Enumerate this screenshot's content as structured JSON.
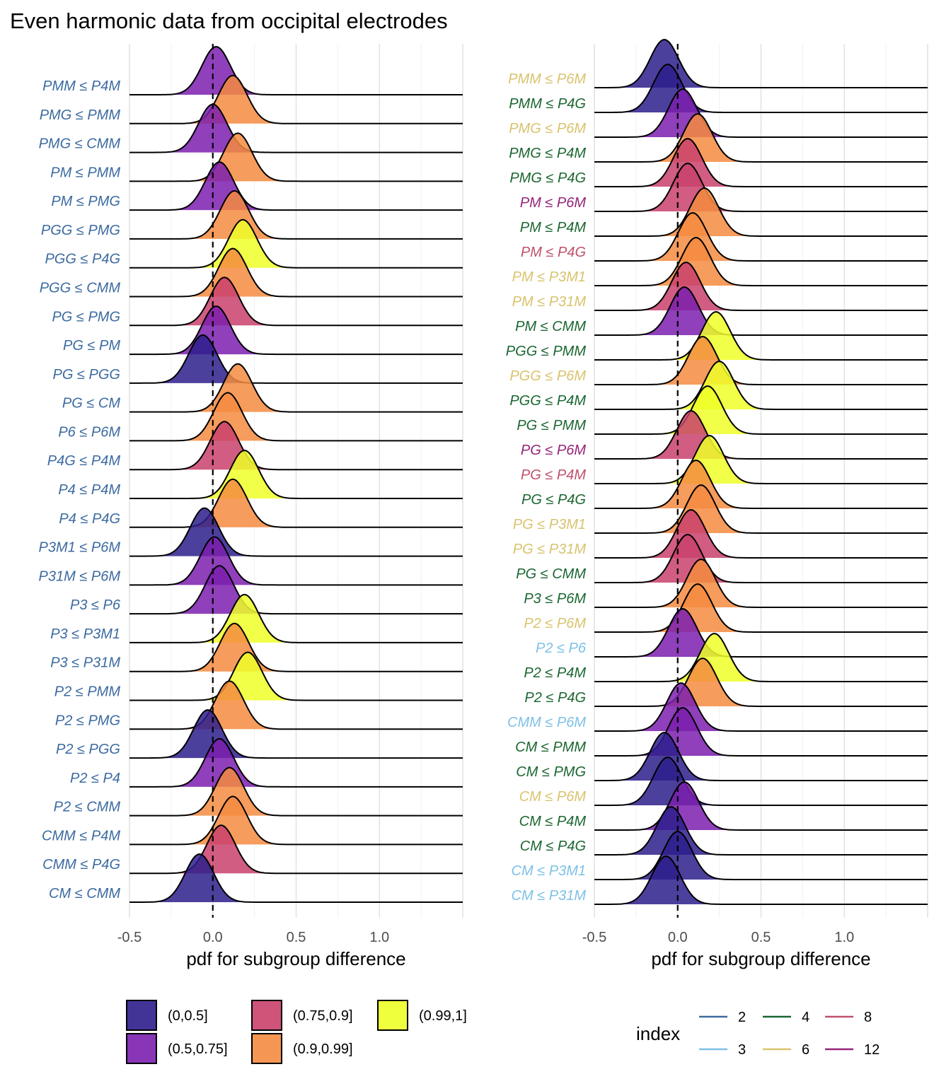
{
  "title": "Even harmonic data from occipital electrodes",
  "chart_data": [
    {
      "type": "ridgeline",
      "xlabel": "pdf for subgroup difference",
      "xlim": [
        -0.5,
        1.5
      ],
      "xticks": [
        -0.5,
        0.0,
        0.5,
        1.0
      ],
      "xtick_labels": [
        "-0.5",
        "0.0",
        "0.5",
        "1.0"
      ],
      "reference_line_x": 0,
      "rows": [
        {
          "label": "PMM ≤ P4M",
          "index": 2,
          "peak": 0.02,
          "prob_bin": "(0.5,0.75]"
        },
        {
          "label": "PMG ≤ PMM",
          "index": 2,
          "peak": 0.12,
          "prob_bin": "(0.9,0.99]"
        },
        {
          "label": "PMG ≤ CMM",
          "index": 2,
          "peak": 0.0,
          "prob_bin": "(0.5,0.75]"
        },
        {
          "label": "PM ≤ PMM",
          "index": 2,
          "peak": 0.15,
          "prob_bin": "(0.9,0.99]"
        },
        {
          "label": "PM ≤ PMG",
          "index": 2,
          "peak": 0.04,
          "prob_bin": "(0.5,0.75]"
        },
        {
          "label": "PGG ≤ PMG",
          "index": 2,
          "peak": 0.13,
          "prob_bin": "(0.9,0.99]"
        },
        {
          "label": "PGG ≤ P4G",
          "index": 2,
          "peak": 0.18,
          "prob_bin": "(0.99,1]"
        },
        {
          "label": "PGG ≤ CMM",
          "index": 2,
          "peak": 0.12,
          "prob_bin": "(0.9,0.99]"
        },
        {
          "label": "PG ≤ PMG",
          "index": 2,
          "peak": 0.07,
          "prob_bin": "(0.75,0.9]"
        },
        {
          "label": "PG ≤ PM",
          "index": 2,
          "peak": 0.02,
          "prob_bin": "(0.5,0.75]"
        },
        {
          "label": "PG ≤ PGG",
          "index": 2,
          "peak": -0.06,
          "prob_bin": "(0,0.5]"
        },
        {
          "label": "PG ≤ CM",
          "index": 2,
          "peak": 0.15,
          "prob_bin": "(0.9,0.99]"
        },
        {
          "label": "P6 ≤ P6M",
          "index": 2,
          "peak": 0.09,
          "prob_bin": "(0.9,0.99]"
        },
        {
          "label": "P4G ≤ P4M",
          "index": 2,
          "peak": 0.07,
          "prob_bin": "(0.75,0.9]"
        },
        {
          "label": "P4 ≤ P4M",
          "index": 2,
          "peak": 0.19,
          "prob_bin": "(0.99,1]"
        },
        {
          "label": "P4 ≤ P4G",
          "index": 2,
          "peak": 0.12,
          "prob_bin": "(0.9,0.99]"
        },
        {
          "label": "P3M1 ≤ P6M",
          "index": 2,
          "peak": -0.05,
          "prob_bin": "(0,0.5]"
        },
        {
          "label": "P31M ≤ P6M",
          "index": 2,
          "peak": 0.01,
          "prob_bin": "(0.5,0.75]"
        },
        {
          "label": "P3 ≤ P6",
          "index": 2,
          "peak": 0.04,
          "prob_bin": "(0.5,0.75]"
        },
        {
          "label": "P3 ≤ P3M1",
          "index": 2,
          "peak": 0.19,
          "prob_bin": "(0.99,1]"
        },
        {
          "label": "P3 ≤ P31M",
          "index": 2,
          "peak": 0.13,
          "prob_bin": "(0.9,0.99]"
        },
        {
          "label": "P2 ≤ PMM",
          "index": 2,
          "peak": 0.21,
          "prob_bin": "(0.99,1]"
        },
        {
          "label": "P2 ≤ PMG",
          "index": 2,
          "peak": 0.1,
          "prob_bin": "(0.9,0.99]"
        },
        {
          "label": "P2 ≤ PGG",
          "index": 2,
          "peak": -0.03,
          "prob_bin": "(0,0.5]"
        },
        {
          "label": "P2 ≤ P4",
          "index": 2,
          "peak": 0.04,
          "prob_bin": "(0.5,0.75]"
        },
        {
          "label": "P2 ≤ CMM",
          "index": 2,
          "peak": 0.1,
          "prob_bin": "(0.9,0.99]"
        },
        {
          "label": "CMM ≤ P4M",
          "index": 2,
          "peak": 0.12,
          "prob_bin": "(0.9,0.99]"
        },
        {
          "label": "CMM ≤ P4G",
          "index": 2,
          "peak": 0.05,
          "prob_bin": "(0.75,0.9]"
        },
        {
          "label": "CM ≤ CMM",
          "index": 2,
          "peak": -0.08,
          "prob_bin": "(0,0.5]"
        }
      ]
    },
    {
      "type": "ridgeline",
      "xlabel": "pdf for subgroup difference",
      "xlim": [
        -0.5,
        1.5
      ],
      "xticks": [
        -0.5,
        0.0,
        0.5,
        1.0
      ],
      "xtick_labels": [
        "-0.5",
        "0.0",
        "0.5",
        "1.0"
      ],
      "reference_line_x": 0,
      "rows": [
        {
          "label": "PMM ≤ P6M",
          "index": 6,
          "peak": -0.08,
          "prob_bin": "(0,0.5]"
        },
        {
          "label": "PMM ≤ P4G",
          "index": 4,
          "peak": -0.06,
          "prob_bin": "(0,0.5]"
        },
        {
          "label": "PMG ≤ P6M",
          "index": 6,
          "peak": 0.03,
          "prob_bin": "(0.5,0.75]"
        },
        {
          "label": "PMG ≤ P4M",
          "index": 4,
          "peak": 0.12,
          "prob_bin": "(0.9,0.99]"
        },
        {
          "label": "PMG ≤ P4G",
          "index": 4,
          "peak": 0.06,
          "prob_bin": "(0.75,0.9]"
        },
        {
          "label": "PM ≤ P6M",
          "index": 12,
          "peak": 0.06,
          "prob_bin": "(0.75,0.9]"
        },
        {
          "label": "PM ≤ P4M",
          "index": 4,
          "peak": 0.16,
          "prob_bin": "(0.9,0.99]"
        },
        {
          "label": "PM ≤ P4G",
          "index": 8,
          "peak": 0.09,
          "prob_bin": "(0.9,0.99]"
        },
        {
          "label": "PM ≤ P3M1",
          "index": 6,
          "peak": 0.11,
          "prob_bin": "(0.9,0.99]"
        },
        {
          "label": "PM ≤ P31M",
          "index": 6,
          "peak": 0.05,
          "prob_bin": "(0.75,0.9]"
        },
        {
          "label": "PM ≤ CMM",
          "index": 4,
          "peak": 0.04,
          "prob_bin": "(0.5,0.75]"
        },
        {
          "label": "PGG ≤ PMM",
          "index": 4,
          "peak": 0.23,
          "prob_bin": "(0.99,1]"
        },
        {
          "label": "PGG ≤ P6M",
          "index": 6,
          "peak": 0.15,
          "prob_bin": "(0.9,0.99]"
        },
        {
          "label": "PGG ≤ P4M",
          "index": 4,
          "peak": 0.25,
          "prob_bin": "(0.99,1]"
        },
        {
          "label": "PG ≤ PMM",
          "index": 4,
          "peak": 0.18,
          "prob_bin": "(0.99,1]"
        },
        {
          "label": "PG ≤ P6M",
          "index": 12,
          "peak": 0.08,
          "prob_bin": "(0.75,0.9]"
        },
        {
          "label": "PG ≤ P4M",
          "index": 8,
          "peak": 0.19,
          "prob_bin": "(0.99,1]"
        },
        {
          "label": "PG ≤ P4G",
          "index": 4,
          "peak": 0.11,
          "prob_bin": "(0.9,0.99]"
        },
        {
          "label": "PG ≤ P3M1",
          "index": 6,
          "peak": 0.14,
          "prob_bin": "(0.9,0.99]"
        },
        {
          "label": "PG ≤ P31M",
          "index": 6,
          "peak": 0.08,
          "prob_bin": "(0.75,0.9]"
        },
        {
          "label": "PG ≤ CMM",
          "index": 4,
          "peak": 0.06,
          "prob_bin": "(0.75,0.9]"
        },
        {
          "label": "P3 ≤ P6M",
          "index": 4,
          "peak": 0.14,
          "prob_bin": "(0.9,0.99]"
        },
        {
          "label": "P2 ≤ P6M",
          "index": 6,
          "peak": 0.12,
          "prob_bin": "(0.9,0.99]"
        },
        {
          "label": "P2 ≤ P6",
          "index": 3,
          "peak": 0.03,
          "prob_bin": "(0.5,0.75]"
        },
        {
          "label": "P2 ≤ P4M",
          "index": 4,
          "peak": 0.22,
          "prob_bin": "(0.99,1]"
        },
        {
          "label": "P2 ≤ P4G",
          "index": 4,
          "peak": 0.15,
          "prob_bin": "(0.9,0.99]"
        },
        {
          "label": "CMM ≤ P6M",
          "index": 3,
          "peak": 0.02,
          "prob_bin": "(0.5,0.75]"
        },
        {
          "label": "CM ≤ PMM",
          "index": 4,
          "peak": 0.03,
          "prob_bin": "(0.5,0.75]"
        },
        {
          "label": "CM ≤ PMG",
          "index": 4,
          "peak": -0.08,
          "prob_bin": "(0,0.5]"
        },
        {
          "label": "CM ≤ P6M",
          "index": 6,
          "peak": -0.06,
          "prob_bin": "(0,0.5]"
        },
        {
          "label": "CM ≤ P4M",
          "index": 4,
          "peak": 0.04,
          "prob_bin": "(0.5,0.75]"
        },
        {
          "label": "CM ≤ P4G",
          "index": 4,
          "peak": -0.04,
          "prob_bin": "(0,0.5]"
        },
        {
          "label": "CM ≤ P3M1",
          "index": 3,
          "peak": 0.0,
          "prob_bin": "(0,0.5]"
        },
        {
          "label": "CM ≤ P31M",
          "index": 3,
          "peak": -0.07,
          "prob_bin": "(0,0.5]"
        }
      ]
    }
  ],
  "fill_legend": {
    "entries": [
      {
        "label": "(0,0.5]",
        "color": "#2D1E8C"
      },
      {
        "label": "(0.5,0.75]",
        "color": "#7B1FAE"
      },
      {
        "label": "(0.75,0.9]",
        "color": "#C9416C"
      },
      {
        "label": "(0.9,0.99]",
        "color": "#F58B40"
      },
      {
        "label": "(0.99,1]",
        "color": "#EEFF28"
      }
    ]
  },
  "color_legend": {
    "title": "index",
    "entries": [
      {
        "label": "2",
        "color": "#3B6AA0"
      },
      {
        "label": "3",
        "color": "#7EC0E6"
      },
      {
        "label": "4",
        "color": "#1A6630"
      },
      {
        "label": "6",
        "color": "#D9C36E"
      },
      {
        "label": "8",
        "color": "#C0506A"
      },
      {
        "label": "12",
        "color": "#962479"
      }
    ]
  }
}
